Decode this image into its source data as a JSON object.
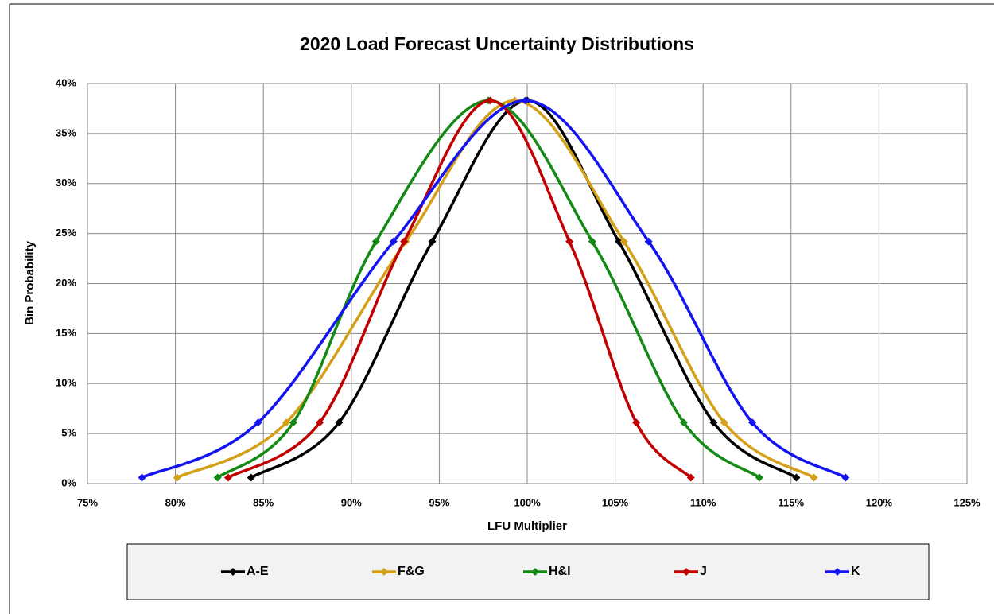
{
  "chart_data": {
    "type": "line",
    "title": "2020 Load Forecast Uncertainty Distributions",
    "x_label": "LFU Multiplier",
    "y_label": "Bin Probability",
    "xlim": [
      75,
      125
    ],
    "xticks": [
      {
        "value": 75,
        "label": "75%"
      },
      {
        "value": 80,
        "label": "80%"
      },
      {
        "value": 85,
        "label": "85%"
      },
      {
        "value": 90,
        "label": "90%"
      },
      {
        "value": 95,
        "label": "95%"
      },
      {
        "value": 100,
        "label": "100%"
      },
      {
        "value": 105,
        "label": "105%"
      },
      {
        "value": 110,
        "label": "110%"
      },
      {
        "value": 115,
        "label": "115%"
      },
      {
        "value": 120,
        "label": "120%"
      },
      {
        "value": 125,
        "label": "125%"
      }
    ],
    "ylim": [
      0,
      40
    ],
    "yticks": [
      {
        "value": 0,
        "label": "0%"
      },
      {
        "value": 5,
        "label": "5%"
      },
      {
        "value": 10,
        "label": "10%"
      },
      {
        "value": 15,
        "label": "15%"
      },
      {
        "value": 20,
        "label": "20%"
      },
      {
        "value": 25,
        "label": "25%"
      },
      {
        "value": 30,
        "label": "30%"
      },
      {
        "value": 35,
        "label": "35%"
      },
      {
        "value": 40,
        "label": "40%"
      }
    ],
    "grid": true,
    "smooth": true,
    "legend": "bottom",
    "series": [
      {
        "name": "A-E",
        "color": "#000000",
        "x": [
          84.3,
          89.3,
          94.6,
          100,
          105.2,
          110.6,
          115.3
        ],
        "values": [
          0.6,
          6.1,
          24.2,
          38.3,
          24.2,
          6.1,
          0.6
        ]
      },
      {
        "name": "F&G",
        "color": "#d4a017",
        "x": [
          80.1,
          86.3,
          93.1,
          99.3,
          105.5,
          111.2,
          116.3
        ],
        "values": [
          0.6,
          6.1,
          24.2,
          38.3,
          24.2,
          6.1,
          0.6
        ]
      },
      {
        "name": "H&I",
        "color": "#138a13",
        "x": [
          82.4,
          86.7,
          91.4,
          97.8,
          103.7,
          108.9,
          113.2
        ],
        "values": [
          0.6,
          6.1,
          24.2,
          38.3,
          24.2,
          6.1,
          0.6
        ]
      },
      {
        "name": "J",
        "color": "#c00000",
        "x": [
          83.0,
          88.2,
          93.0,
          97.9,
          102.4,
          106.2,
          109.3
        ],
        "values": [
          0.6,
          6.1,
          24.2,
          38.3,
          24.2,
          6.1,
          0.6
        ]
      },
      {
        "name": "K",
        "color": "#1414f0",
        "x": [
          78.1,
          84.7,
          92.4,
          99.9,
          106.9,
          112.8,
          118.1
        ],
        "values": [
          0.6,
          6.1,
          24.2,
          38.3,
          24.2,
          6.1,
          0.6
        ]
      }
    ]
  }
}
